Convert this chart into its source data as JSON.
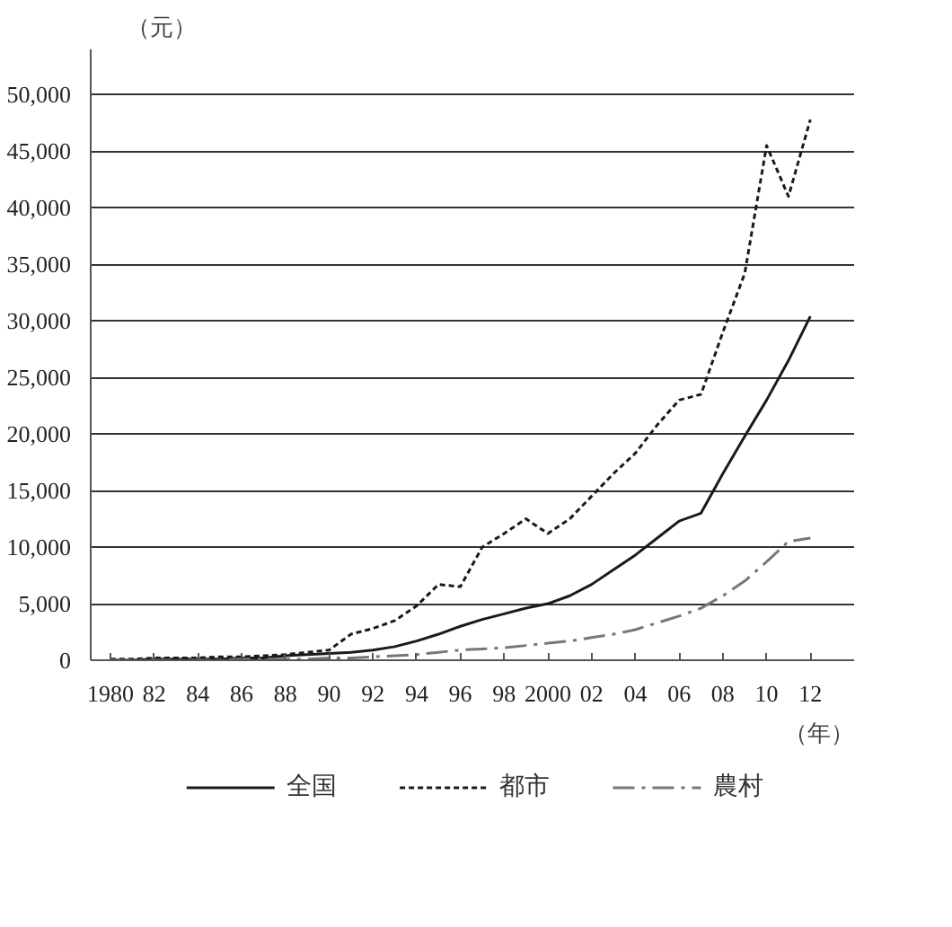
{
  "chart_data": {
    "type": "line",
    "ylabel": "（元）",
    "xlabel": "（年）",
    "x": [
      1980,
      1981,
      1982,
      1983,
      1984,
      1985,
      1986,
      1987,
      1988,
      1989,
      1990,
      1991,
      1992,
      1993,
      1994,
      1995,
      1996,
      1997,
      1998,
      1999,
      2000,
      2001,
      2002,
      2003,
      2004,
      2005,
      2006,
      2007,
      2008,
      2009,
      2010,
      2011,
      2012
    ],
    "series": [
      {
        "name": "全国",
        "color": "#1a1a1a",
        "line_style": "solid",
        "values": [
          0,
          0,
          100,
          100,
          100,
          100,
          200,
          200,
          400,
          500,
          600,
          700,
          900,
          1200,
          1700,
          2300,
          3000,
          3600,
          4100,
          4600,
          5000,
          5700,
          6700,
          8000,
          9300,
          10800,
          12300,
          13000,
          16500,
          19800,
          23000,
          26500,
          30400
        ]
      },
      {
        "name": "都市",
        "color": "#1a1a1a",
        "line_style": "dashed",
        "values": [
          100,
          100,
          200,
          200,
          200,
          300,
          300,
          400,
          500,
          700,
          900,
          2300,
          2800,
          3500,
          4800,
          6700,
          6500,
          10000,
          11200,
          12500,
          11200,
          12500,
          14500,
          16500,
          18300,
          20800,
          23000,
          23500,
          29000,
          34200,
          45500,
          41000,
          47800
        ]
      },
      {
        "name": "農村",
        "color": "#777777",
        "line_style": "dashdot",
        "values": [
          0,
          0,
          0,
          0,
          0,
          0,
          100,
          100,
          100,
          100,
          200,
          200,
          300,
          400,
          500,
          700,
          900,
          1000,
          1100,
          1300,
          1500,
          1700,
          2000,
          2300,
          2700,
          3300,
          3900,
          4600,
          5700,
          7000,
          8700,
          10500,
          10800
        ]
      }
    ],
    "xlim": [
      1979.1,
      2014
    ],
    "xticks": [
      {
        "value": 1980,
        "label": "1980"
      },
      {
        "value": 1982,
        "label": "82"
      },
      {
        "value": 1984,
        "label": "84"
      },
      {
        "value": 1986,
        "label": "86"
      },
      {
        "value": 1988,
        "label": "88"
      },
      {
        "value": 1990,
        "label": "90"
      },
      {
        "value": 1992,
        "label": "92"
      },
      {
        "value": 1994,
        "label": "94"
      },
      {
        "value": 1996,
        "label": "96"
      },
      {
        "value": 1998,
        "label": "98"
      },
      {
        "value": 2000,
        "label": "2000"
      },
      {
        "value": 2002,
        "label": "02"
      },
      {
        "value": 2004,
        "label": "04"
      },
      {
        "value": 2006,
        "label": "06"
      },
      {
        "value": 2008,
        "label": "08"
      },
      {
        "value": 2010,
        "label": "10"
      },
      {
        "value": 2012,
        "label": "12"
      }
    ],
    "ylim": [
      0,
      54000
    ],
    "yticks": [
      {
        "value": 0,
        "label": "0"
      },
      {
        "value": 5000,
        "label": "5,000"
      },
      {
        "value": 10000,
        "label": "10,000"
      },
      {
        "value": 15000,
        "label": "15,000"
      },
      {
        "value": 20000,
        "label": "20,000"
      },
      {
        "value": 25000,
        "label": "25,000"
      },
      {
        "value": 30000,
        "label": "30,000"
      },
      {
        "value": 35000,
        "label": "35,000"
      },
      {
        "value": 40000,
        "label": "40,000"
      },
      {
        "value": 45000,
        "label": "45,000"
      },
      {
        "value": 50000,
        "label": "50,000"
      }
    ],
    "grid": "y",
    "legend": "bottom",
    "marker": "none"
  }
}
